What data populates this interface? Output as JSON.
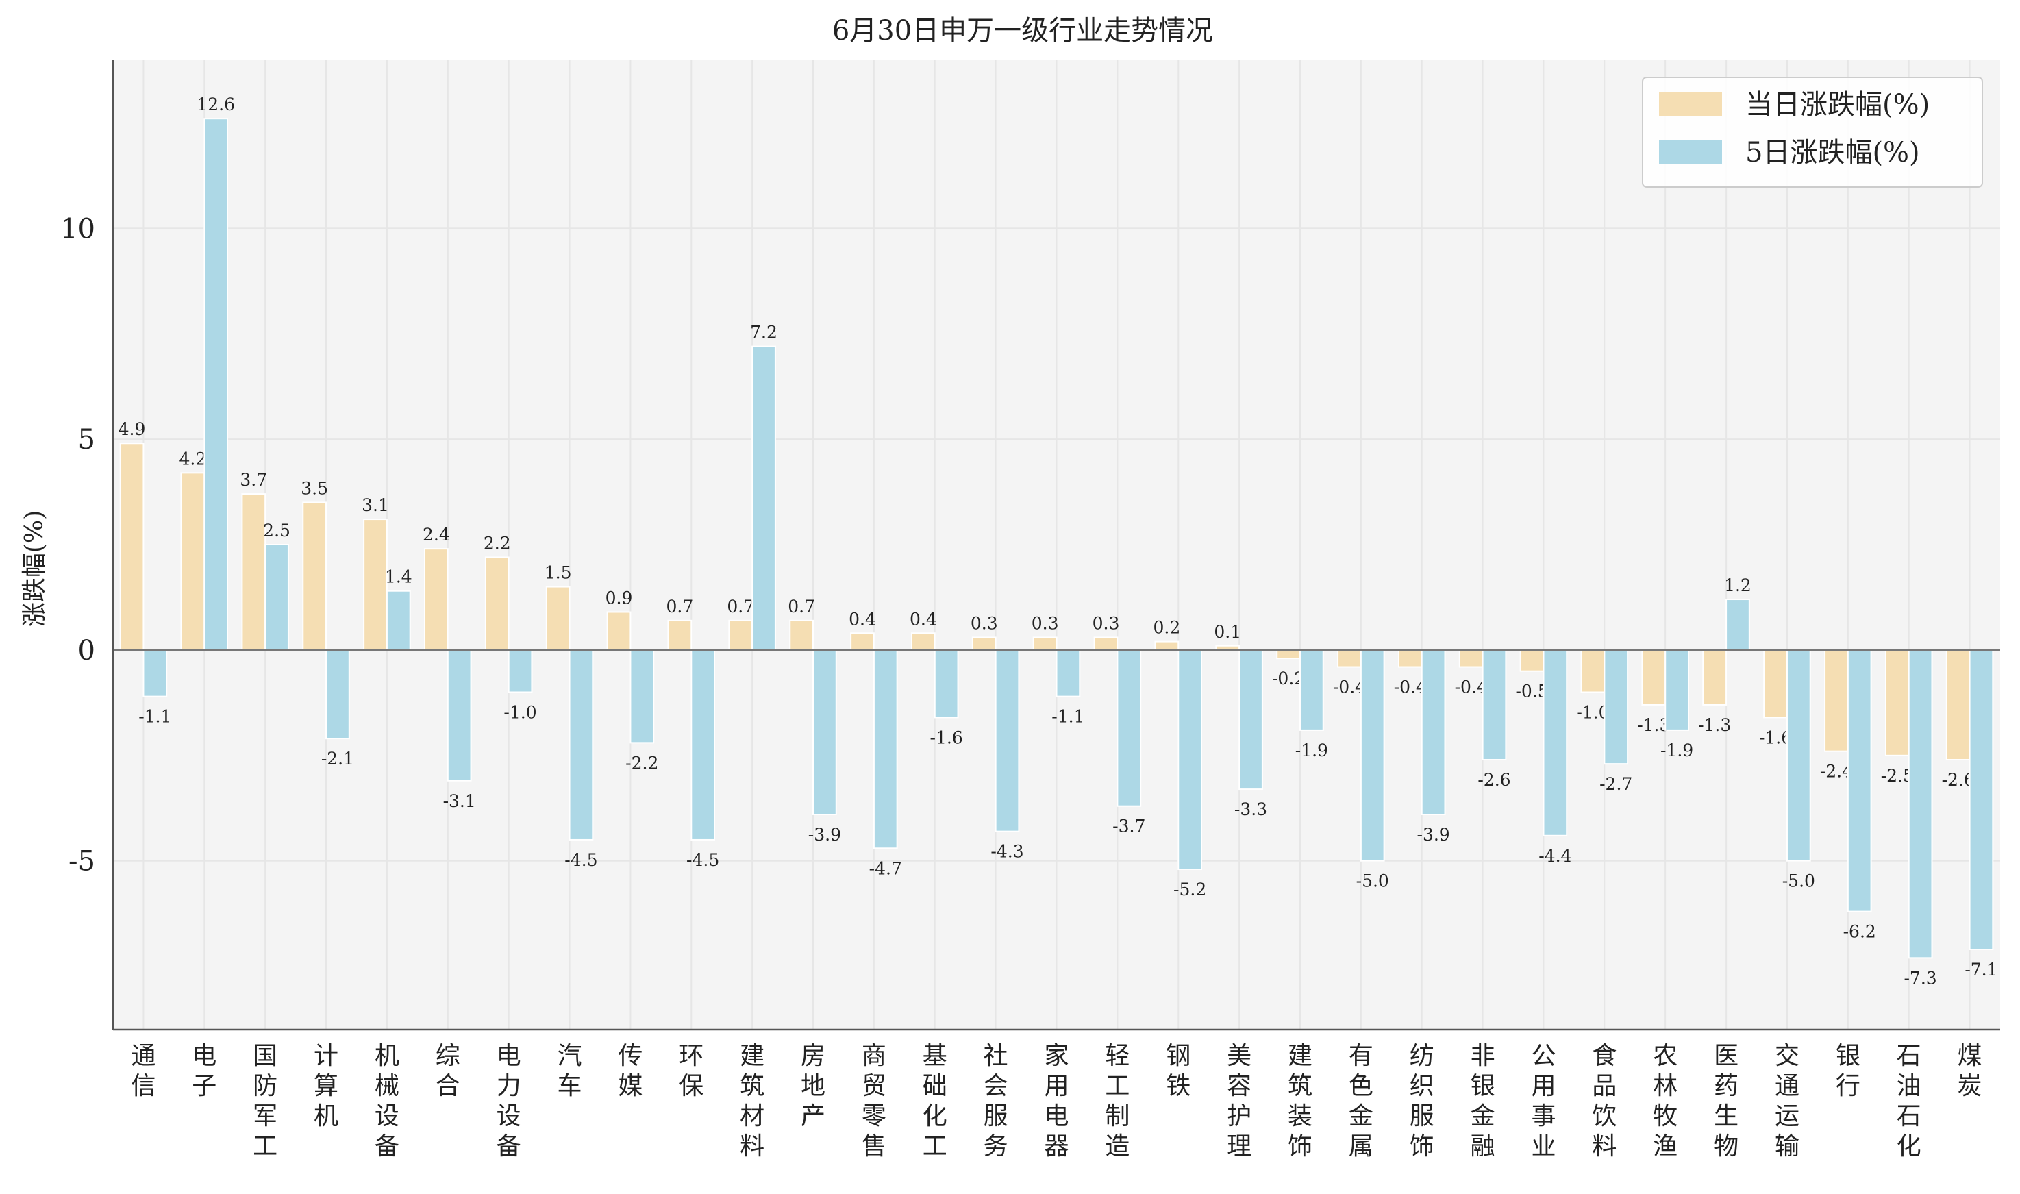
{
  "chart_data": {
    "type": "bar",
    "title": "6月30日申万一级行业走势情况",
    "ylabel": "涨跌幅(%)",
    "xlabel": "",
    "ylim": [
      -9,
      14
    ],
    "yticks": [
      -5,
      0,
      5,
      10
    ],
    "grid": true,
    "legend_position": "top-right",
    "categories": [
      "通信",
      "电子",
      "国防军工",
      "计算机",
      "机械设备",
      "综合",
      "电力设备",
      "汽车",
      "传媒",
      "环保",
      "建筑材料",
      "房地产",
      "商贸零售",
      "基础化工",
      "社会服务",
      "家用电器",
      "轻工制造",
      "钢铁",
      "美容护理",
      "建筑装饰",
      "有色金属",
      "纺织服饰",
      "非银金融",
      "公用事业",
      "食品饮料",
      "农林牧渔",
      "医药生物",
      "交通运输",
      "银行",
      "石油石化",
      "煤炭"
    ],
    "series": [
      {
        "name": "当日涨跌幅(%)",
        "color": "#F5DEB3",
        "values": [
          4.9,
          4.2,
          3.7,
          3.5,
          3.1,
          2.4,
          2.2,
          1.5,
          0.9,
          0.7,
          0.7,
          0.7,
          0.4,
          0.4,
          0.3,
          0.3,
          0.3,
          0.2,
          0.1,
          -0.2,
          -0.4,
          -0.4,
          -0.4,
          -0.5,
          -1.0,
          -1.3,
          -1.3,
          -1.6,
          -2.4,
          -2.5,
          -2.6
        ]
      },
      {
        "name": "5日涨跌幅(%)",
        "color": "#ADD8E6",
        "values": [
          -1.1,
          12.6,
          2.5,
          -2.1,
          1.4,
          -3.1,
          -1.0,
          -4.5,
          -2.2,
          -4.5,
          7.2,
          -3.9,
          -4.7,
          -1.6,
          -4.3,
          -1.1,
          -3.7,
          -5.2,
          -3.3,
          -1.9,
          -5.0,
          -3.9,
          -2.6,
          -4.4,
          -2.7,
          -1.9,
          1.2,
          -5.0,
          -6.2,
          -7.3,
          -7.1
        ]
      }
    ]
  }
}
